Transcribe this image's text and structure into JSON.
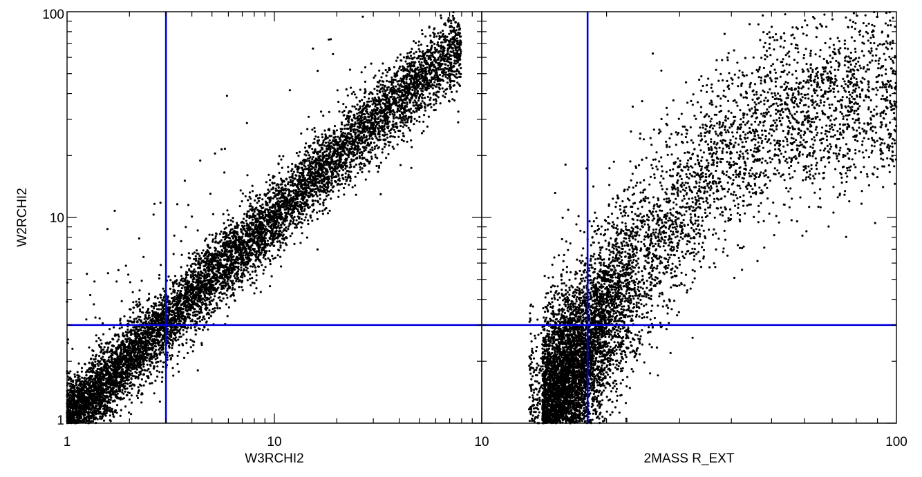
{
  "chart_data": [
    {
      "type": "scatter",
      "title": "",
      "xlabel": "W3RCHI2",
      "ylabel": "W2RCHI2",
      "xscale": "log",
      "yscale": "log",
      "xlim": [
        1,
        100
      ],
      "ylim": [
        1,
        100
      ],
      "x_tick_labels": [
        {
          "value": 1,
          "label": "1"
        },
        {
          "value": 10,
          "label": "10"
        }
      ],
      "y_tick_labels": [
        {
          "value": 1,
          "label": "1"
        },
        {
          "value": 10,
          "label": "10"
        },
        {
          "value": 100,
          "label": "100"
        }
      ],
      "grid": false,
      "legend": "none",
      "marker_color": "#000000",
      "threshold_lines": [
        {
          "orientation": "vertical",
          "value": 3,
          "color": "#0000dd"
        },
        {
          "orientation": "horizontal",
          "value": 3,
          "color": "#0000dd"
        }
      ],
      "distribution": {
        "n_points": 9000,
        "trend": "W2RCHI2 rises roughly proportionally with W3RCHI2, tight band from (1,1) to (80,80)",
        "anchor_points": [
          {
            "x": 1.0,
            "y": 1.0
          },
          {
            "x": 2.0,
            "y": 2.1
          },
          {
            "x": 3.0,
            "y": 3.0
          },
          {
            "x": 5.0,
            "y": 5.2
          },
          {
            "x": 10.0,
            "y": 10.0
          },
          {
            "x": 20.0,
            "y": 20.0
          },
          {
            "x": 40.0,
            "y": 38.0
          },
          {
            "x": 80.0,
            "y": 70.0
          }
        ],
        "scatter_dex": 0.09
      }
    },
    {
      "type": "scatter",
      "title": "",
      "xlabel": "2MASS R_EXT",
      "ylabel": "W2RCHI2",
      "xscale": "log",
      "yscale": "log",
      "xlim": [
        10,
        100
      ],
      "ylim": [
        1,
        100
      ],
      "x_tick_labels": [
        {
          "value": 10,
          "label": "10"
        },
        {
          "value": 100,
          "label": "100"
        }
      ],
      "grid": false,
      "legend": "none",
      "marker_color": "#000000",
      "threshold_lines": [
        {
          "orientation": "vertical",
          "value": 18,
          "color": "#0000dd"
        },
        {
          "orientation": "horizontal",
          "value": 3,
          "color": "#0000dd"
        }
      ],
      "distribution": {
        "n_points": 9000,
        "trend": "dense clump near (15-20, 1-2), broad upward fan reaching y~30-50 at x~40-100",
        "anchor_points": [
          {
            "x": 14.0,
            "y": 1.1
          },
          {
            "x": 17.0,
            "y": 1.8
          },
          {
            "x": 22.0,
            "y": 4.5
          },
          {
            "x": 28.0,
            "y": 9.0
          },
          {
            "x": 35.0,
            "y": 16.0
          },
          {
            "x": 45.0,
            "y": 26.0
          },
          {
            "x": 70.0,
            "y": 35.0
          },
          {
            "x": 100.0,
            "y": 40.0
          }
        ],
        "scatter_dex": 0.22
      }
    }
  ]
}
